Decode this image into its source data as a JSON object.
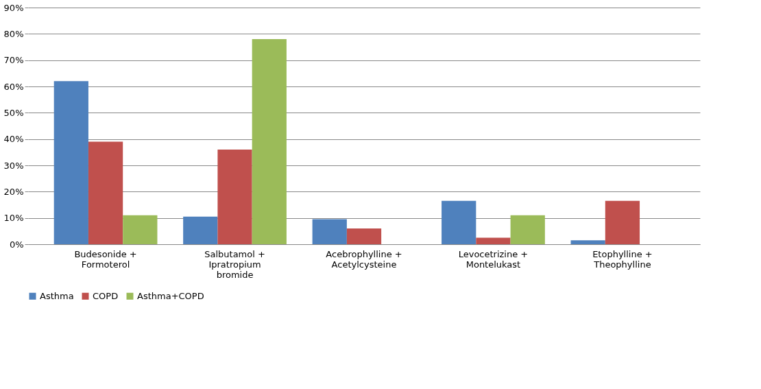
{
  "chart_data": {
    "type": "bar",
    "categories": [
      "Budesonide + Formoterol",
      "Salbutamol + Ipratropium bromide",
      "Acebrophylline + Acetylcysteine",
      "Levocetrizine + Montelukast",
      "Etophylline + Theophylline"
    ],
    "series": [
      {
        "name": "Asthma",
        "color": "#4f81bd",
        "values": [
          62,
          10.5,
          9.5,
          16.5,
          1.5
        ]
      },
      {
        "name": "COPD",
        "color": "#c0504d",
        "values": [
          39,
          36,
          6,
          2.5,
          16.5
        ]
      },
      {
        "name": "Asthma+COPD",
        "color": "#9bbb59",
        "values": [
          11,
          78,
          null,
          11,
          null
        ]
      }
    ],
    "ylim": [
      0,
      90
    ],
    "yticks": [
      {
        "value": 0,
        "label": "0%"
      },
      {
        "value": 10,
        "label": "10%"
      },
      {
        "value": 20,
        "label": "20%"
      },
      {
        "value": 30,
        "label": "30%"
      },
      {
        "value": 40,
        "label": "40%"
      },
      {
        "value": 50,
        "label": "50%"
      },
      {
        "value": 60,
        "label": "60%"
      },
      {
        "value": 70,
        "label": "70%"
      },
      {
        "value": 80,
        "label": "80%"
      },
      {
        "value": 90,
        "label": "90%"
      }
    ],
    "grid": "y",
    "legend": "bottom"
  }
}
